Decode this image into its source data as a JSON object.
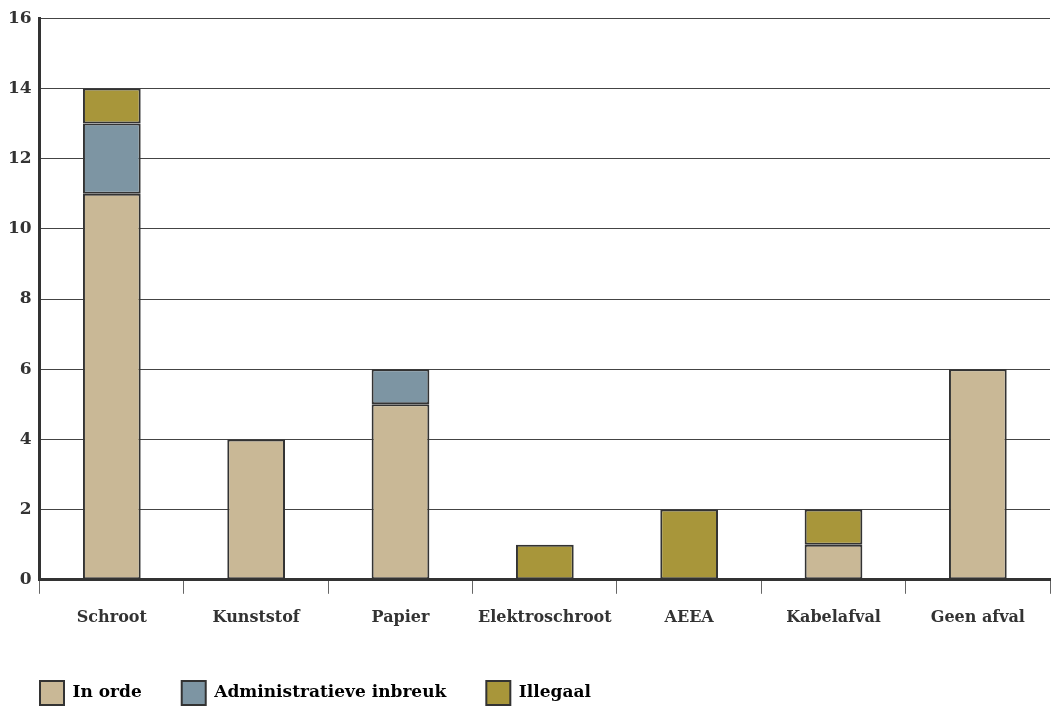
{
  "chart_data": {
    "type": "bar",
    "stacked": true,
    "categories": [
      "Schroot",
      "Kunststof",
      "Papier",
      "Elektroschroot",
      "AEEA",
      "Kabelafval",
      "Geen afval"
    ],
    "series": [
      {
        "name": "In orde",
        "color": "#c9b896",
        "values": [
          11,
          4,
          5,
          0,
          0,
          1,
          6
        ]
      },
      {
        "name": "Administratieve inbreuk",
        "color": "#7d95a3",
        "values": [
          2,
          0,
          1,
          0,
          0,
          0,
          0
        ]
      },
      {
        "name": "Illegaal",
        "color": "#a8963a",
        "values": [
          1,
          0,
          0,
          1,
          2,
          1,
          0
        ]
      }
    ],
    "ylim": [
      0,
      16
    ],
    "yticks": [
      0,
      2,
      4,
      6,
      8,
      10,
      12,
      14,
      16
    ],
    "grid": "y",
    "legend": "bottom"
  }
}
